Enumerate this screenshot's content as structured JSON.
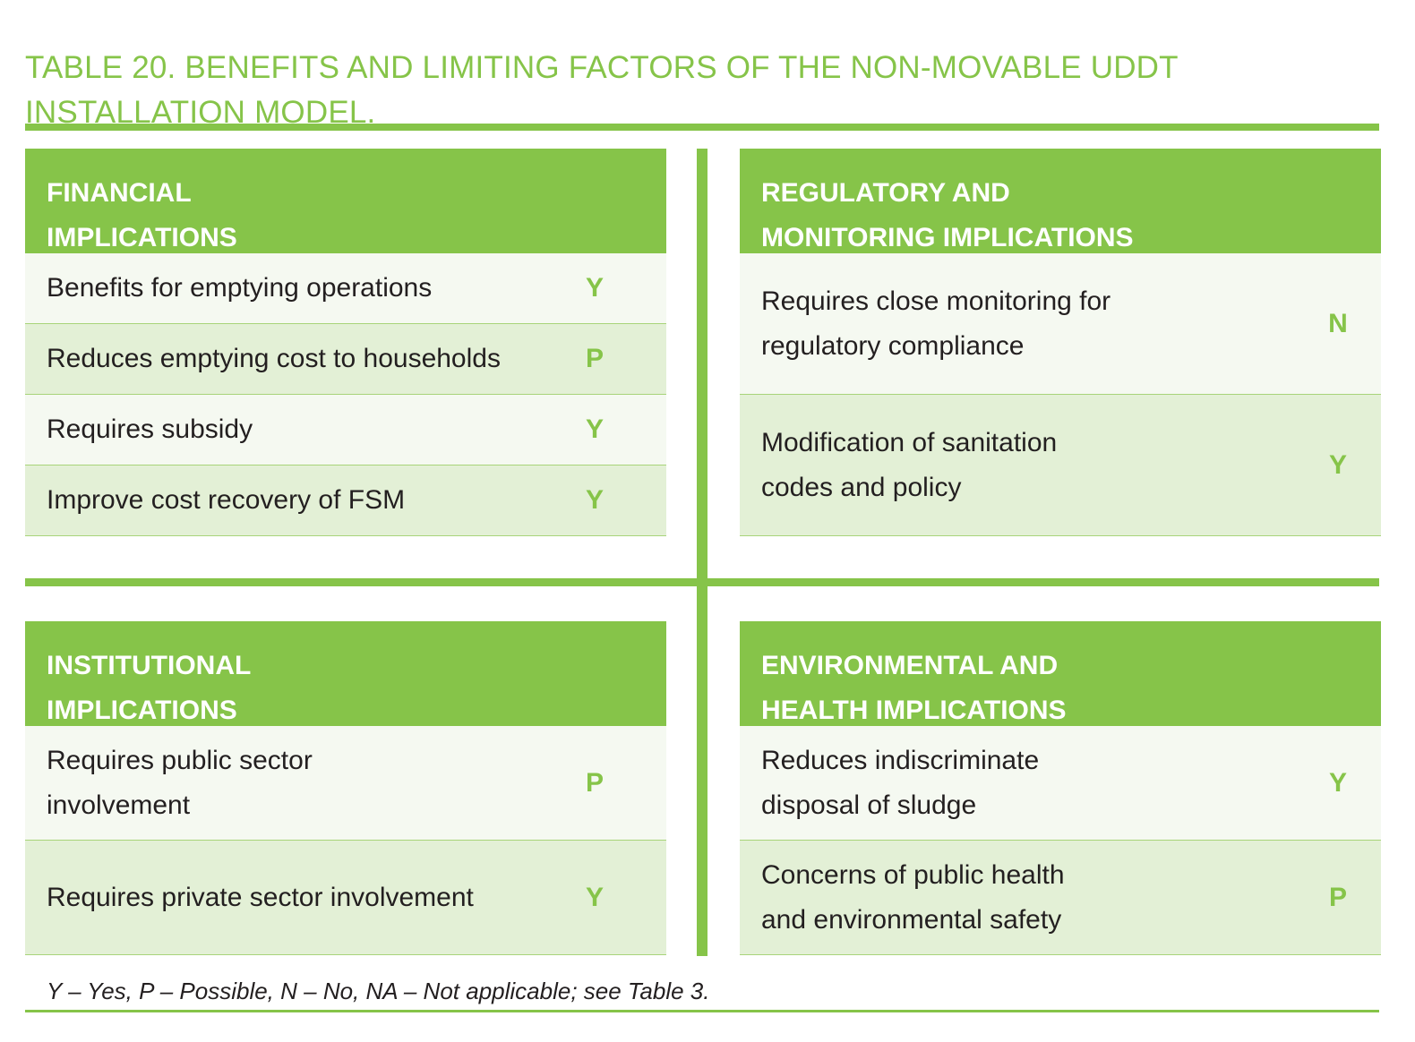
{
  "title": {
    "line1": "TABLE 20. BENEFITS AND LIMITING FACTORS OF THE NON-MOVABLE UDDT",
    "line2": "INSTALLATION MODEL."
  },
  "panels": {
    "financial": {
      "heading_line1": "FINANCIAL",
      "heading_line2": "IMPLICATIONS",
      "rows": [
        {
          "label": "Benefits for emptying operations",
          "value": "Y"
        },
        {
          "label": "Reduces emptying cost to households",
          "value": "P"
        },
        {
          "label": "Requires subsidy",
          "value": "Y"
        },
        {
          "label": "Improve cost recovery of FSM",
          "value": "Y"
        }
      ]
    },
    "regulatory": {
      "heading_line1": "REGULATORY AND",
      "heading_line2": "MONITORING IMPLICATIONS",
      "rows": [
        {
          "label_line1": "Requires close monitoring for",
          "label_line2": "regulatory compliance",
          "value": "N"
        },
        {
          "label_line1": "Modification of sanitation",
          "label_line2": "codes and policy",
          "value": "Y"
        }
      ]
    },
    "institutional": {
      "heading_line1": "INSTITUTIONAL",
      "heading_line2": "IMPLICATIONS",
      "rows": [
        {
          "label_line1": "Requires public sector",
          "label_line2": "involvement",
          "value": "P"
        },
        {
          "label": "Requires private sector involvement",
          "value": "Y"
        }
      ]
    },
    "environmental": {
      "heading_line1": "ENVIRONMENTAL AND",
      "heading_line2": "HEALTH IMPLICATIONS",
      "rows": [
        {
          "label_line1": "Reduces indiscriminate",
          "label_line2": "disposal of sludge",
          "value": "Y"
        },
        {
          "label_line1": "Concerns of public health",
          "label_line2": "and environmental safety",
          "value": "P"
        }
      ]
    }
  },
  "footnote": "Y – Yes, P – Possible, N – No, NA – Not applicable; see Table 3.",
  "colors": {
    "accent": "#86c449",
    "row_light": "#f5f9f1",
    "row_tint": "#e3f0d6",
    "text": "#231f20"
  }
}
